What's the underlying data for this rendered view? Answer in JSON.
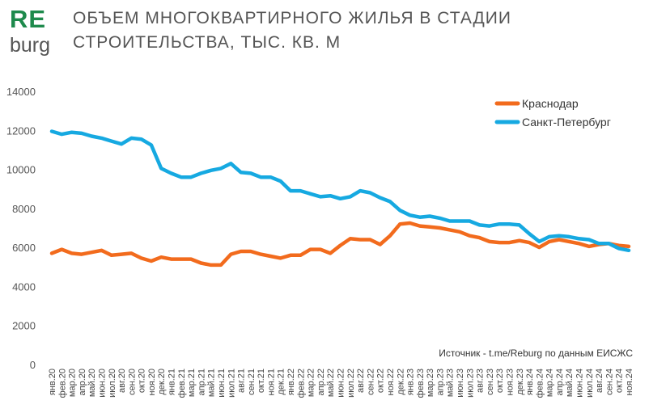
{
  "logo": {
    "top": "RE",
    "bottom": "burg",
    "color": "#1e8a4c"
  },
  "title_line1": "ОБЪЕМ МНОГОКВАРТИРНОГО ЖИЛЬЯ В СТАДИИ",
  "title_line2": "СТРОИТЕЛЬСТВА, ТЫС. КВ. М",
  "source": "Источник - t.me/Reburg по данным ЕИСЖС",
  "chart_data": {
    "type": "line",
    "title": "ОБЪЕМ МНОГОКВАРТИРНОГО ЖИЛЬЯ В СТАДИИ СТРОИТЕЛЬСТВА, ТЫС. КВ. М",
    "ylim": [
      0,
      14000
    ],
    "yticks": [
      0,
      2000,
      4000,
      6000,
      8000,
      10000,
      12000,
      14000
    ],
    "grid": false,
    "legend_position": "top-right",
    "categories": [
      "янв.20",
      "фев.20",
      "мар.20",
      "апр.20",
      "май.20",
      "июн.20",
      "июл.20",
      "авг.20",
      "сен.20",
      "окт.20",
      "ноя.20",
      "дек.20",
      "янв.21",
      "фев.21",
      "мар.21",
      "апр.21",
      "май.21",
      "июн.21",
      "июл.21",
      "авг.21",
      "сен.21",
      "окт.21",
      "ноя.21",
      "дек.21",
      "янв.22",
      "фев.22",
      "мар.22",
      "апр.22",
      "май.22",
      "июн.22",
      "июл.22",
      "авг.22",
      "сен.22",
      "окт.22",
      "ноя.22",
      "дек.22",
      "янв.23",
      "фев.23",
      "мар.23",
      "апр.23",
      "май.23",
      "июн.23",
      "июл.23",
      "авг.23",
      "сен.23",
      "окт.23",
      "ноя.23",
      "дек.23",
      "янв.24",
      "фев.24",
      "мар.24",
      "апр.24",
      "май.24",
      "июн.24",
      "июл.24",
      "авг.24",
      "сен.24",
      "окт.24",
      "ноя.24"
    ],
    "series": [
      {
        "name": "Краснодар",
        "color": "#f26b1d",
        "values": [
          5700,
          5900,
          5700,
          5650,
          5750,
          5850,
          5600,
          5650,
          5700,
          5450,
          5300,
          5500,
          5400,
          5400,
          5400,
          5200,
          5100,
          5100,
          5650,
          5800,
          5800,
          5650,
          5550,
          5450,
          5600,
          5600,
          5900,
          5900,
          5700,
          6100,
          6450,
          6400,
          6400,
          6150,
          6600,
          7200,
          7250,
          7100,
          7050,
          7000,
          6900,
          6800,
          6600,
          6500,
          6300,
          6250,
          6250,
          6350,
          6250,
          6000,
          6300,
          6400,
          6300,
          6200,
          6050,
          6150,
          6200,
          6100,
          6050
        ]
      },
      {
        "name": "Санкт-Петербург",
        "color": "#16a9e1",
        "values": [
          11950,
          11800,
          11900,
          11850,
          11700,
          11600,
          11450,
          11300,
          11600,
          11550,
          11250,
          10050,
          9800,
          9600,
          9600,
          9800,
          9950,
          10050,
          10300,
          9850,
          9800,
          9600,
          9600,
          9400,
          8900,
          8900,
          8750,
          8600,
          8650,
          8500,
          8600,
          8900,
          8800,
          8550,
          8350,
          7900,
          7650,
          7550,
          7600,
          7500,
          7350,
          7350,
          7350,
          7150,
          7100,
          7200,
          7200,
          7150,
          6700,
          6300,
          6550,
          6600,
          6550,
          6450,
          6400,
          6200,
          6200,
          5950,
          5850
        ]
      }
    ]
  }
}
